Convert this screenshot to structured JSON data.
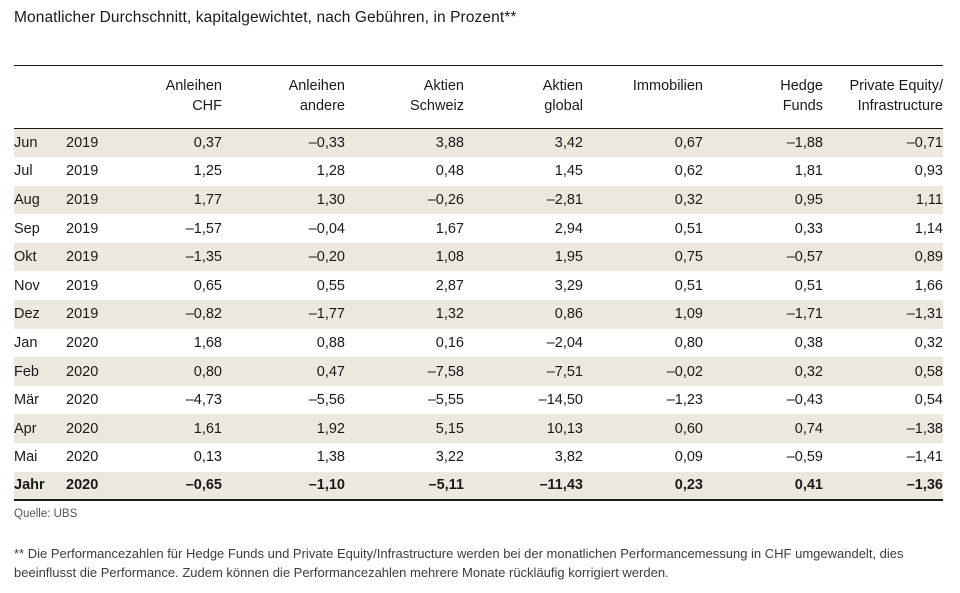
{
  "page": {
    "title": "Monatlicher Durchschnitt, kapitalgewichtet, nach Gebühren, in Prozent**",
    "source": "Quelle: UBS",
    "footnote": "** Die Performancezahlen für Hedge Funds und Private Equity/Infrastructure werden bei der monatlichen Performancemessung in CHF umgewandelt, dies beeinflusst die Performance. Zudem können die Performancezahlen mehrere Monate rückläufig korrigiert werden."
  },
  "colors": {
    "stripe": "#ece8de",
    "rule": "#1a1a1a",
    "text": "#1a1a1a"
  },
  "chart_data": {
    "type": "table",
    "title": "Monatlicher Durchschnitt, kapitalgewichtet, nach Gebühren, in Prozent**",
    "columns": [
      {
        "id": "anleihen-chf",
        "lines": [
          "Anleihen",
          "CHF"
        ]
      },
      {
        "id": "anleihen-andere",
        "lines": [
          "Anleihen",
          "andere"
        ]
      },
      {
        "id": "aktien-schweiz",
        "lines": [
          "Aktien",
          "Schweiz"
        ]
      },
      {
        "id": "aktien-global",
        "lines": [
          "Aktien",
          "global"
        ]
      },
      {
        "id": "immobilien",
        "lines": [
          "Immobilien"
        ]
      },
      {
        "id": "hedge-funds",
        "lines": [
          "Hedge",
          "Funds"
        ]
      },
      {
        "id": "private-equity-infrastructure",
        "lines": [
          "Private Equity/",
          "Infrastructure"
        ]
      }
    ],
    "number_format": "comma decimal, en-dash minus, 2 decimals",
    "rows": [
      {
        "month": "Jun",
        "year": "2019",
        "values": [
          0.37,
          -0.33,
          3.88,
          3.42,
          0.67,
          -1.88,
          -0.71
        ]
      },
      {
        "month": "Jul",
        "year": "2019",
        "values": [
          1.25,
          1.28,
          0.48,
          1.45,
          0.62,
          1.81,
          0.93
        ]
      },
      {
        "month": "Aug",
        "year": "2019",
        "values": [
          1.77,
          1.3,
          -0.26,
          -2.81,
          0.32,
          0.95,
          1.11
        ]
      },
      {
        "month": "Sep",
        "year": "2019",
        "values": [
          -1.57,
          -0.04,
          1.67,
          2.94,
          0.51,
          0.33,
          1.14
        ]
      },
      {
        "month": "Okt",
        "year": "2019",
        "values": [
          -1.35,
          -0.2,
          1.08,
          1.95,
          0.75,
          -0.57,
          0.89
        ]
      },
      {
        "month": "Nov",
        "year": "2019",
        "values": [
          0.65,
          0.55,
          2.87,
          3.29,
          0.51,
          0.51,
          1.66
        ]
      },
      {
        "month": "Dez",
        "year": "2019",
        "values": [
          -0.82,
          -1.77,
          1.32,
          0.86,
          1.09,
          -1.71,
          -1.31
        ]
      },
      {
        "month": "Jan",
        "year": "2020",
        "values": [
          1.68,
          0.88,
          0.16,
          -2.04,
          0.8,
          0.38,
          0.32
        ]
      },
      {
        "month": "Feb",
        "year": "2020",
        "values": [
          0.8,
          0.47,
          -7.58,
          -7.51,
          -0.02,
          0.32,
          0.58
        ]
      },
      {
        "month": "Mär",
        "year": "2020",
        "values": [
          -4.73,
          -5.56,
          -5.55,
          -14.5,
          -1.23,
          -0.43,
          0.54
        ]
      },
      {
        "month": "Apr",
        "year": "2020",
        "values": [
          1.61,
          1.92,
          5.15,
          10.13,
          0.6,
          0.74,
          -1.38
        ]
      },
      {
        "month": "Mai",
        "year": "2020",
        "values": [
          0.13,
          1.38,
          3.22,
          3.82,
          0.09,
          -0.59,
          -1.41
        ]
      },
      {
        "month": "Jahr",
        "year": "2020",
        "values": [
          -0.65,
          -1.1,
          -5.11,
          -11.43,
          0.23,
          0.41,
          -1.36
        ],
        "is_total": true
      }
    ]
  }
}
